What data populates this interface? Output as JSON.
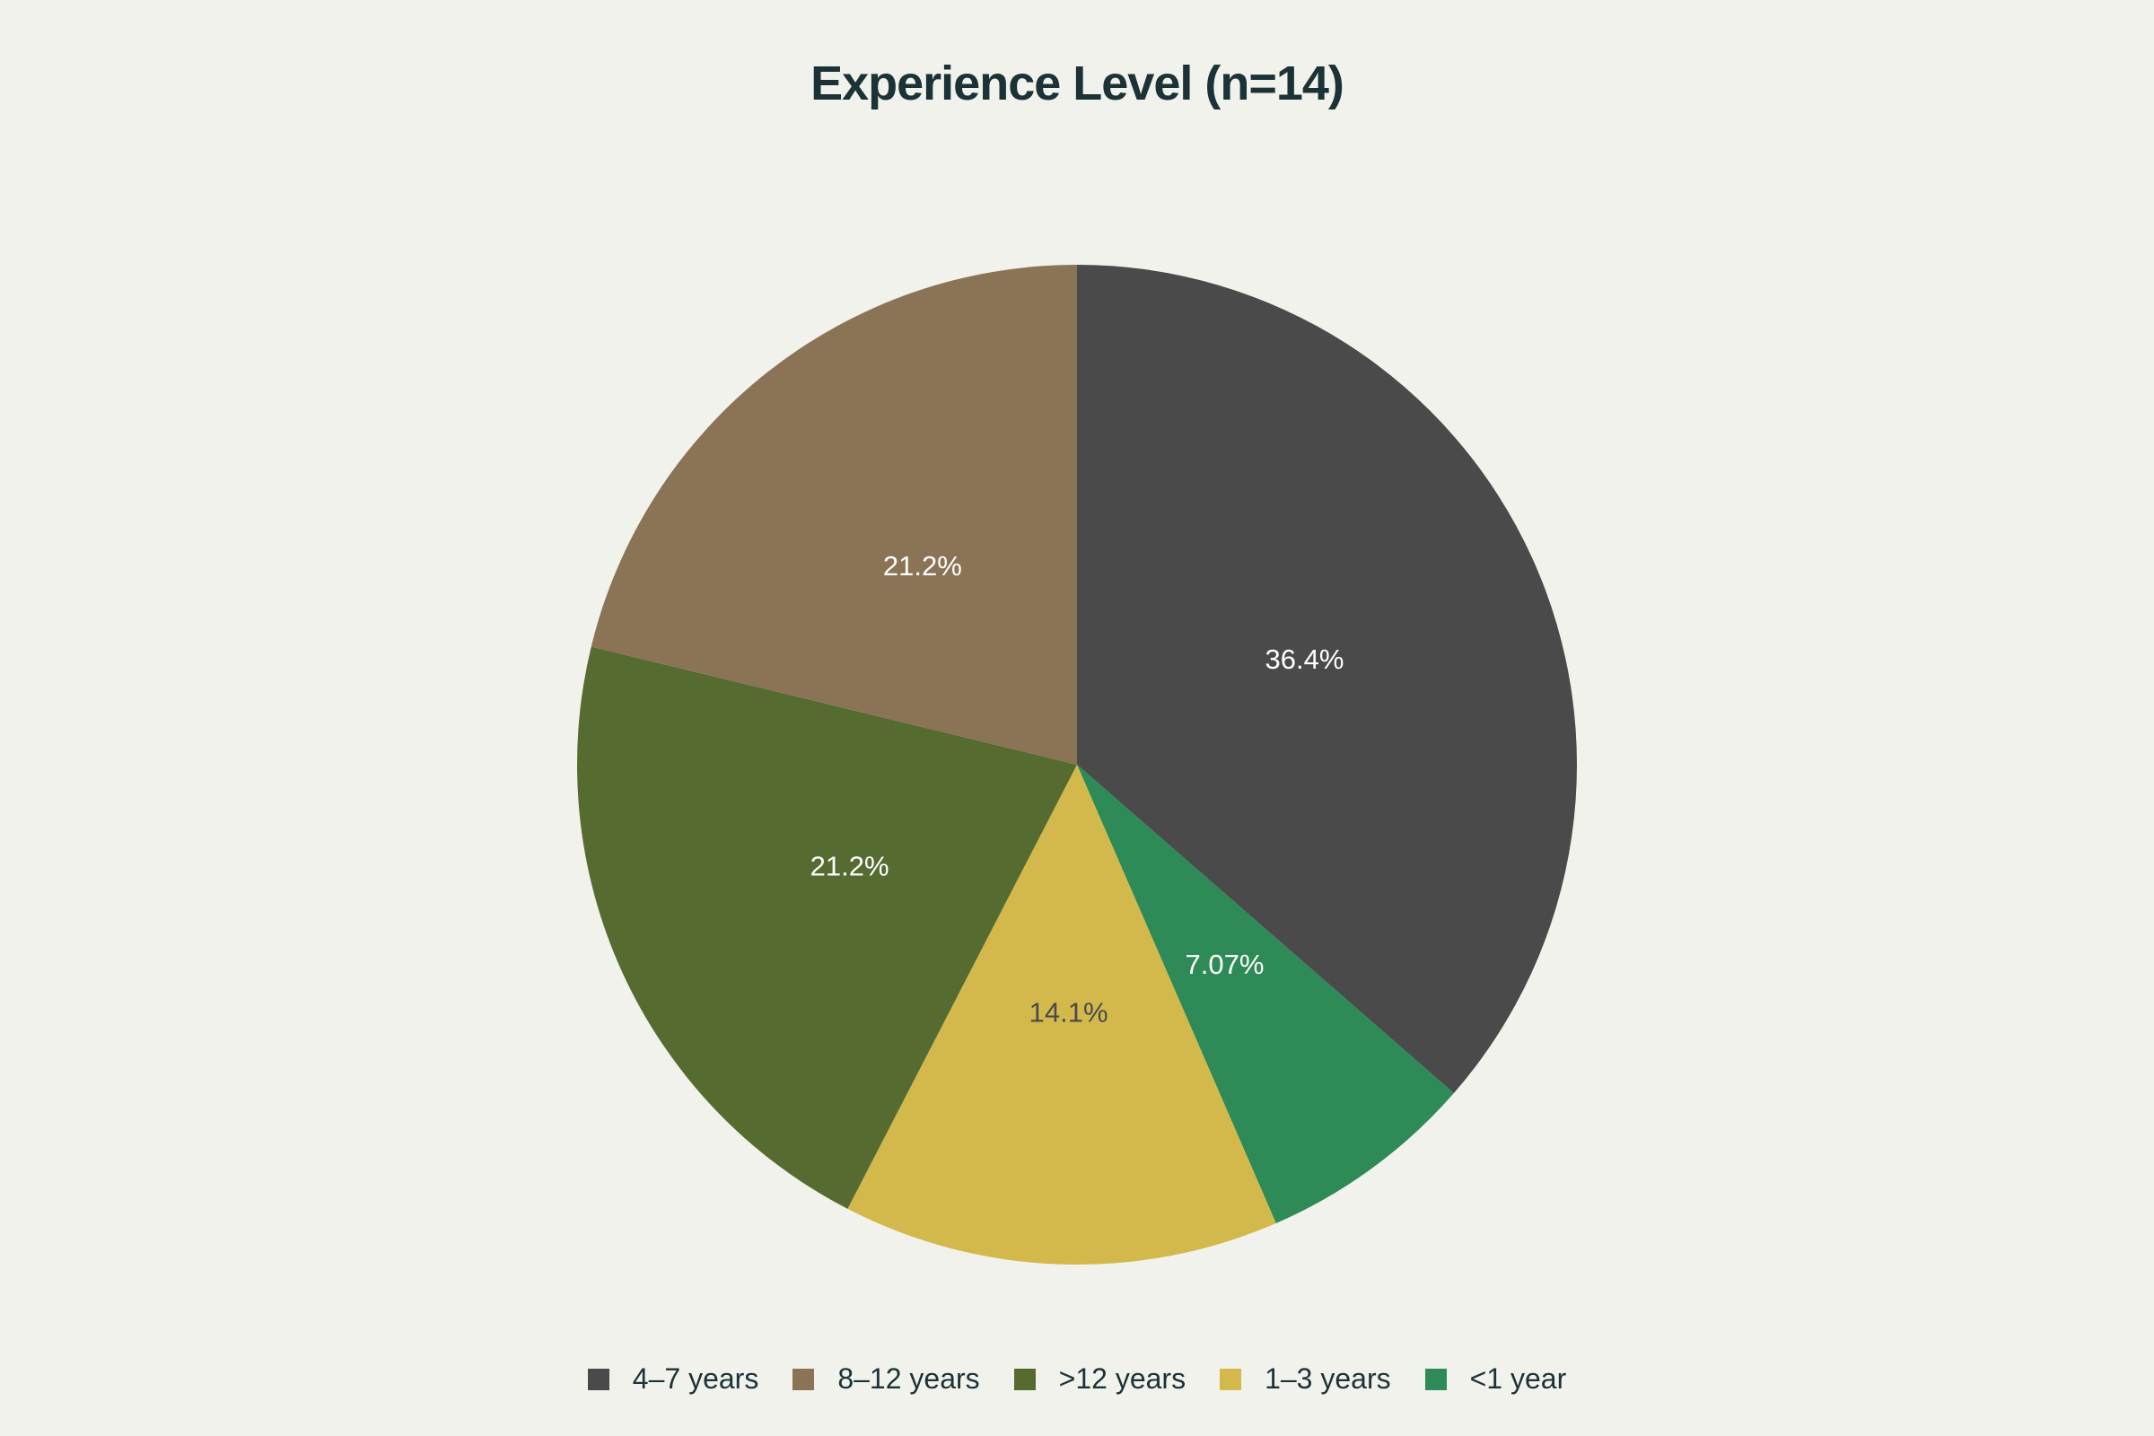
{
  "chart_data": {
    "type": "pie",
    "title": "Experience Level (n=14)",
    "slices": [
      {
        "label": "4–7 years",
        "value": 36.4,
        "display": "36.4%",
        "color": "#4a4a4a",
        "label_color": "#ffffff"
      },
      {
        "label": "<1 year",
        "value": 7.07,
        "display": "7.07%",
        "color": "#2e8b57",
        "label_color": "#ffffff"
      },
      {
        "label": "1–3 years",
        "value": 14.1,
        "display": "14.1%",
        "color": "#d3b94c",
        "label_color": "#4a4a4a"
      },
      {
        "label": ">12 years",
        "value": 21.2,
        "display": "21.2%",
        "color": "#566b30",
        "label_color": "#ffffff"
      },
      {
        "label": "8–12 years",
        "value": 21.2,
        "display": "21.2%",
        "color": "#8b7355",
        "label_color": "#ffffff"
      }
    ],
    "start_angle": "12 o'clock",
    "direction": "clockwise",
    "legend": {
      "placement": "bottom-center",
      "order": [
        "4–7 years",
        "8–12 years",
        ">12 years",
        "1–3 years",
        "<1 year"
      ]
    }
  }
}
